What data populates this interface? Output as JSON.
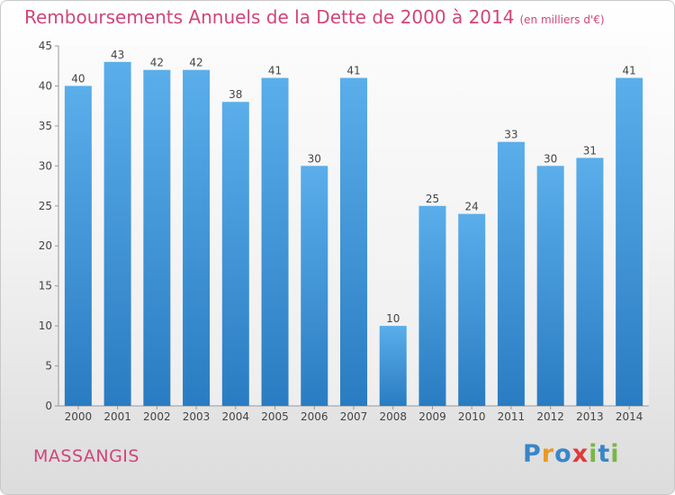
{
  "title": "Remboursements Annuels de la Dette de 2000 à 2014",
  "unit": "(en milliers d'€)",
  "town": "MASSANGIS",
  "logo": {
    "letters": [
      "P",
      "r",
      "o",
      "x",
      "i",
      "t",
      "i"
    ],
    "colors": [
      "#3a86c8",
      "#e89a2a",
      "#3a86c8",
      "#e03a3a",
      "#7ab648",
      "#3a86c8",
      "#7ab648"
    ]
  },
  "chart_data": {
    "type": "bar",
    "title": "Remboursements Annuels de la Dette de 2000 à 2014",
    "xlabel": "",
    "ylabel": "",
    "categories": [
      "2000",
      "2001",
      "2002",
      "2003",
      "2004",
      "2005",
      "2006",
      "2007",
      "2008",
      "2009",
      "2010",
      "2011",
      "2012",
      "2013",
      "2014"
    ],
    "values": [
      40,
      43,
      42,
      42,
      38,
      41,
      30,
      41,
      10,
      25,
      24,
      33,
      30,
      31,
      41
    ],
    "ylim": [
      0,
      45
    ],
    "yticks": [
      0,
      5,
      10,
      15,
      20,
      25,
      30,
      35,
      40,
      45
    ],
    "grid": false,
    "bar_color": "#3a8fd6"
  }
}
